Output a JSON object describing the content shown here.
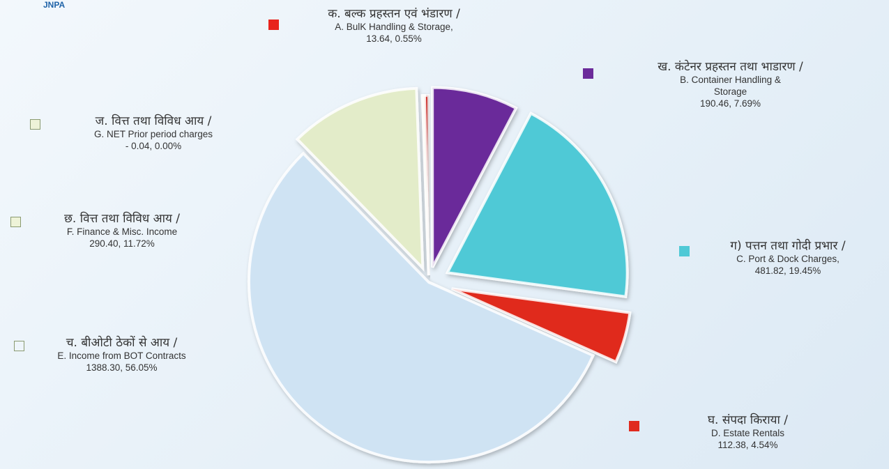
{
  "logo": {
    "text": "JNPA"
  },
  "chart_data": {
    "type": "pie",
    "slices": [
      {
        "key": "A",
        "hindi": "क. बल्क प्रहस्तन एवं भंडारण /",
        "name": "A. BulK Handling & Storage,",
        "value": 13.64,
        "percent": "0.55%",
        "value_text": "13.64, 0.55%",
        "color": "#e8231c",
        "swatch_color": "#e8231c"
      },
      {
        "key": "B",
        "hindi": "ख. कंटेनर प्रहस्तन तथा भाडारण /",
        "name": "B. Container Handling & Storage",
        "value": 190.46,
        "percent": "7.69%",
        "value_text": "190.46, 7.69%",
        "color": "#6b2b9a",
        "swatch_color": "#6b2b9a"
      },
      {
        "key": "C",
        "hindi": "ग) पत्तन तथा गोदी प्रभार /",
        "name": "C. Port & Dock Charges,",
        "value": 481.82,
        "percent": "19.45%",
        "value_text": "481.82, 19.45%",
        "color": "#4fc9d6",
        "swatch_color": "#4fc9d6"
      },
      {
        "key": "D",
        "hindi": "घ. संपदा किराया /",
        "name": "D. Estate Rentals",
        "value": 112.38,
        "percent": "4.54%",
        "value_text": "112.38, 4.54%",
        "color": "#e02a1e",
        "swatch_color": "#e02a1e"
      },
      {
        "key": "E",
        "hindi": "च. बीओटी ठेकों से आय /",
        "name": "E. Income from BOT Contracts",
        "value": 1388.3,
        "percent": "56.05%",
        "value_text": "1388.30, 56.05%",
        "color": "#cfe3f3",
        "swatch_color": "#eef5fb"
      },
      {
        "key": "F",
        "hindi": "छ. वित्त तथा विविध आय /",
        "name": "F. Finance & Misc. Income",
        "value": 290.4,
        "percent": "11.72%",
        "value_text": "290.40, 11.72%",
        "color": "#e3ecc9",
        "swatch_color": "#eef3d8"
      },
      {
        "key": "G",
        "hindi": "ज. वित्त तथा विविध आय /",
        "name": "G. NET Prior period charges",
        "value": -0.04,
        "percent": "0.00%",
        "value_text": "- 0.04, 0.00%",
        "color": "#e9efd2",
        "swatch_color": "#eef3d8"
      }
    ]
  }
}
